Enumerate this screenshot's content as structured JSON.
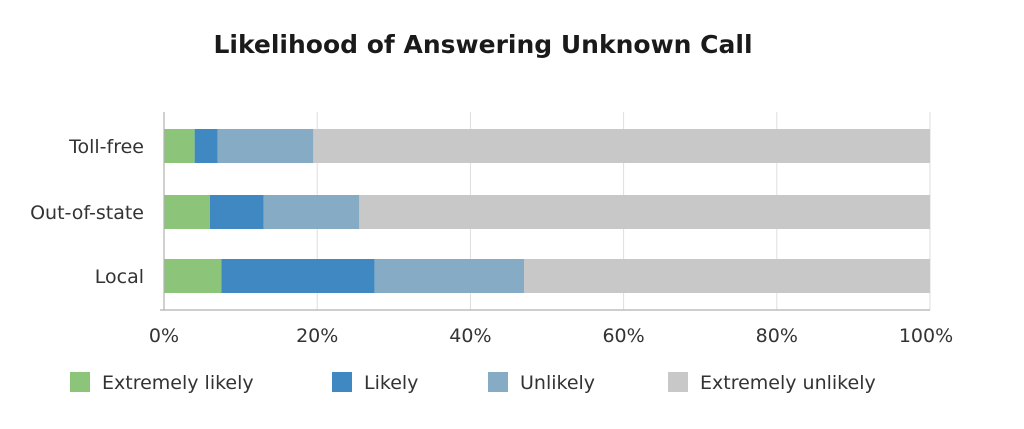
{
  "chart_data": {
    "type": "bar",
    "orientation": "horizontal",
    "stacked": true,
    "title": "Likelihood of Answering Unknown Call",
    "categories": [
      "Toll-free",
      "Out-of-state",
      "Local"
    ],
    "series": [
      {
        "name": "Extremely likely",
        "color": "#8cc47a",
        "values": [
          4,
          6,
          7.5
        ]
      },
      {
        "name": "Likely",
        "color": "#3f88c2",
        "values": [
          3,
          7,
          20
        ]
      },
      {
        "name": "Unlikely",
        "color": "#85acc4",
        "values": [
          12.5,
          12.5,
          19.5
        ]
      },
      {
        "name": "Extremely unlikely",
        "color": "#c8c8c8",
        "values": [
          80.5,
          74.5,
          53
        ]
      }
    ],
    "xticks": [
      "0%",
      "20%",
      "40%",
      "60%",
      "80%",
      "100%"
    ],
    "xlim": [
      0,
      100
    ],
    "grid": true,
    "legend_position": "bottom"
  }
}
